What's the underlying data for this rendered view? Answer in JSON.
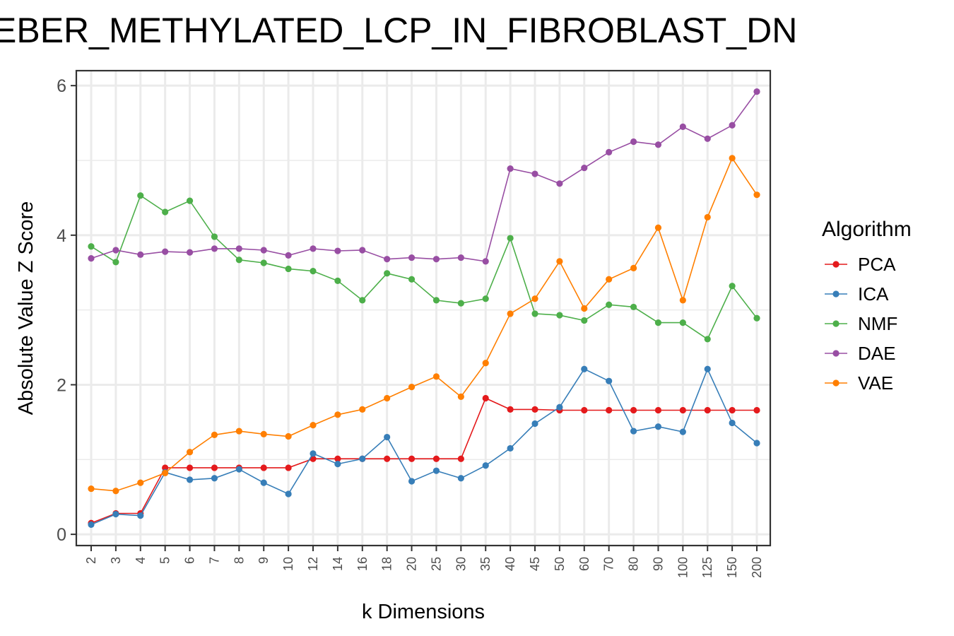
{
  "chart_data": {
    "type": "line",
    "title": "EBER_METHYLATED_LCP_IN_FIBROBLAST_DN",
    "xlabel": "k Dimensions",
    "ylabel": "Absolute Value Z Score",
    "categories": [
      "2",
      "3",
      "4",
      "5",
      "6",
      "7",
      "8",
      "9",
      "10",
      "12",
      "14",
      "16",
      "18",
      "20",
      "25",
      "30",
      "35",
      "40",
      "45",
      "50",
      "60",
      "70",
      "80",
      "90",
      "100",
      "125",
      "150",
      "200"
    ],
    "ylim": [
      -0.15,
      6.2
    ],
    "yticks": [
      0,
      2,
      4,
      6
    ],
    "grid": true,
    "legend": {
      "title": "Algorithm",
      "position": "right"
    },
    "series": [
      {
        "name": "PCA",
        "color": "#e41a1c",
        "values": [
          0.15,
          0.28,
          0.28,
          0.89,
          0.89,
          0.89,
          0.89,
          0.89,
          0.89,
          1.01,
          1.01,
          1.01,
          1.01,
          1.01,
          1.01,
          1.01,
          1.82,
          1.67,
          1.67,
          1.66,
          1.66,
          1.66,
          1.66,
          1.66,
          1.66,
          1.66,
          1.66,
          1.66
        ]
      },
      {
        "name": "ICA",
        "color": "#377eb8",
        "values": [
          0.13,
          0.27,
          0.25,
          0.83,
          0.73,
          0.75,
          0.87,
          0.69,
          0.54,
          1.08,
          0.94,
          1.01,
          1.3,
          0.71,
          0.85,
          0.75,
          0.92,
          1.15,
          1.48,
          1.7,
          2.21,
          2.05,
          1.38,
          1.44,
          1.37,
          2.21,
          1.49,
          1.22
        ]
      },
      {
        "name": "NMF",
        "color": "#4daf4a",
        "values": [
          3.85,
          3.64,
          4.53,
          4.31,
          4.46,
          3.98,
          3.67,
          3.63,
          3.55,
          3.52,
          3.39,
          3.13,
          3.49,
          3.41,
          3.13,
          3.09,
          3.15,
          3.96,
          2.95,
          2.93,
          2.86,
          3.07,
          3.04,
          2.83,
          2.83,
          2.61,
          3.32,
          2.89
        ]
      },
      {
        "name": "DAE",
        "color": "#984ea3",
        "values": [
          3.69,
          3.8,
          3.74,
          3.78,
          3.77,
          3.82,
          3.82,
          3.8,
          3.73,
          3.82,
          3.79,
          3.8,
          3.68,
          3.7,
          3.68,
          3.7,
          3.65,
          4.89,
          4.82,
          4.69,
          4.9,
          5.11,
          5.25,
          5.21,
          5.45,
          5.29,
          5.47,
          5.92
        ]
      },
      {
        "name": "VAE",
        "color": "#ff7f00",
        "values": [
          0.61,
          0.58,
          0.69,
          0.82,
          1.1,
          1.33,
          1.38,
          1.34,
          1.31,
          1.46,
          1.6,
          1.67,
          1.82,
          1.97,
          2.11,
          1.84,
          2.29,
          2.95,
          3.15,
          3.65,
          3.02,
          3.41,
          3.56,
          4.1,
          3.13,
          4.24,
          5.03,
          4.54
        ]
      }
    ]
  }
}
